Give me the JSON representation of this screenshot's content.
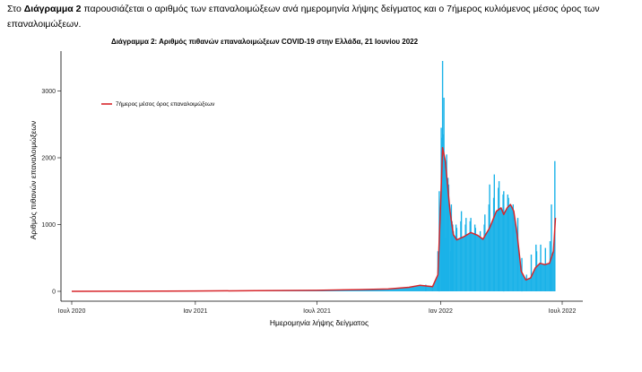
{
  "intro": {
    "prefix": "Στο ",
    "bold": "Διάγραμμα 2",
    "rest": " παρουσιάζεται ο αριθμός των επαναλοιμώξεων ανά ημερομηνία λήψης δείγματος και ο 7ήμερος κυλιόμενος μέσος όρος των επαναλοιμώξεων."
  },
  "colors": {
    "bars": "#1ab2e8",
    "line": "#d7262b",
    "axis": "#000000"
  },
  "chart_data": {
    "type": "bar",
    "title": "Διάγραμμα 2: Αριθμός πιθανών επαναλοιμώξεων COVID-19 στην Ελλάδα, 21 Ιουνίου 2022",
    "xlabel": "Ημερομηνία λήψης δείγματος",
    "ylabel": "Αριθμός πιθανών επαναλοιμώξεων",
    "ylim": [
      0,
      3200
    ],
    "y_ticks": [
      0,
      1000,
      2000,
      3000
    ],
    "x_ticks": [
      {
        "label": "Ιουλ 2020",
        "date": "2020-07-01"
      },
      {
        "label": "Ιαν 2021",
        "date": "2021-01-01"
      },
      {
        "label": "Ιουλ 2021",
        "date": "2021-07-01"
      },
      {
        "label": "Ιαν 2022",
        "date": "2022-01-01"
      },
      {
        "label": "Ιουλ 2022",
        "date": "2022-07-01"
      }
    ],
    "grid": false,
    "legend": {
      "position": "top-left",
      "entries": [
        "7ήμερος μέσος όρος επαναλοιμώξεων"
      ]
    },
    "series": [
      {
        "name": "7ήμερος μέσος όρος επαναλοιμώξεων",
        "type": "line",
        "points": [
          [
            "2020-07-01",
            0
          ],
          [
            "2020-10-01",
            2
          ],
          [
            "2021-01-01",
            5
          ],
          [
            "2021-04-01",
            10
          ],
          [
            "2021-07-01",
            15
          ],
          [
            "2021-09-01",
            25
          ],
          [
            "2021-10-15",
            35
          ],
          [
            "2021-11-15",
            60
          ],
          [
            "2021-12-01",
            90
          ],
          [
            "2021-12-20",
            70
          ],
          [
            "2021-12-28",
            250
          ],
          [
            "2022-01-01",
            1300
          ],
          [
            "2022-01-04",
            2150
          ],
          [
            "2022-01-08",
            1950
          ],
          [
            "2022-01-15",
            1200
          ],
          [
            "2022-01-20",
            850
          ],
          [
            "2022-01-25",
            770
          ],
          [
            "2022-02-05",
            820
          ],
          [
            "2022-02-15",
            880
          ],
          [
            "2022-02-25",
            840
          ],
          [
            "2022-03-05",
            780
          ],
          [
            "2022-03-15",
            950
          ],
          [
            "2022-03-25",
            1200
          ],
          [
            "2022-04-01",
            1250
          ],
          [
            "2022-04-05",
            1150
          ],
          [
            "2022-04-10",
            1250
          ],
          [
            "2022-04-15",
            1300
          ],
          [
            "2022-04-20",
            1200
          ],
          [
            "2022-04-25",
            850
          ],
          [
            "2022-05-01",
            300
          ],
          [
            "2022-05-08",
            170
          ],
          [
            "2022-05-15",
            200
          ],
          [
            "2022-05-22",
            350
          ],
          [
            "2022-05-29",
            420
          ],
          [
            "2022-06-05",
            400
          ],
          [
            "2022-06-12",
            420
          ],
          [
            "2022-06-18",
            600
          ],
          [
            "2022-06-21",
            1100
          ]
        ]
      },
      {
        "name": "daily",
        "type": "bar",
        "points": [
          [
            "2021-12-10",
            100
          ],
          [
            "2021-12-20",
            80
          ],
          [
            "2021-12-28",
            600
          ],
          [
            "2021-12-30",
            1500
          ],
          [
            "2022-01-02",
            2450
          ],
          [
            "2022-01-03",
            2300
          ],
          [
            "2022-01-04",
            3450
          ],
          [
            "2022-01-05",
            2350
          ],
          [
            "2022-01-06",
            2900
          ],
          [
            "2022-01-07",
            2000
          ],
          [
            "2022-01-09",
            800
          ],
          [
            "2022-01-10",
            2050
          ],
          [
            "2022-01-11",
            1650
          ],
          [
            "2022-01-12",
            1700
          ],
          [
            "2022-01-13",
            1600
          ],
          [
            "2022-01-16",
            600
          ],
          [
            "2022-01-17",
            1300
          ],
          [
            "2022-01-18",
            1050
          ],
          [
            "2022-01-19",
            1000
          ],
          [
            "2022-01-20",
            900
          ],
          [
            "2022-01-24",
            1000
          ],
          [
            "2022-01-25",
            950
          ],
          [
            "2022-01-31",
            1050
          ],
          [
            "2022-02-01",
            1200
          ],
          [
            "2022-02-07",
            1000
          ],
          [
            "2022-02-08",
            1100
          ],
          [
            "2022-02-14",
            1050
          ],
          [
            "2022-02-15",
            1100
          ],
          [
            "2022-02-21",
            1000
          ],
          [
            "2022-02-22",
            950
          ],
          [
            "2022-03-01",
            900
          ],
          [
            "2022-03-07",
            1000
          ],
          [
            "2022-03-08",
            1150
          ],
          [
            "2022-03-14",
            1300
          ],
          [
            "2022-03-15",
            1600
          ],
          [
            "2022-03-21",
            1400
          ],
          [
            "2022-03-22",
            1750
          ],
          [
            "2022-03-28",
            1550
          ],
          [
            "2022-03-29",
            1650
          ],
          [
            "2022-04-04",
            1450
          ],
          [
            "2022-04-05",
            1500
          ],
          [
            "2022-04-11",
            1450
          ],
          [
            "2022-04-12",
            1400
          ],
          [
            "2022-04-19",
            1300
          ],
          [
            "2022-04-26",
            1100
          ],
          [
            "2022-05-02",
            500
          ],
          [
            "2022-05-09",
            250
          ],
          [
            "2022-05-16",
            550
          ],
          [
            "2022-05-23",
            700
          ],
          [
            "2022-05-24",
            600
          ],
          [
            "2022-05-30",
            700
          ],
          [
            "2022-06-06",
            650
          ],
          [
            "2022-06-13",
            750
          ],
          [
            "2022-06-15",
            1300
          ],
          [
            "2022-06-20",
            1950
          ]
        ]
      }
    ]
  }
}
